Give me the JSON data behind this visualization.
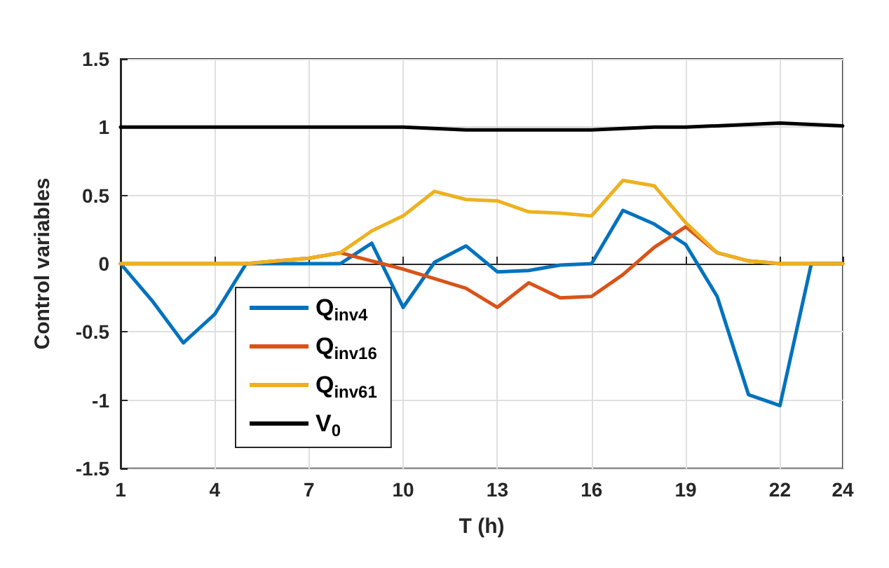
{
  "chart_data": {
    "type": "line",
    "xlabel": "T (h)",
    "ylabel": "Control variables",
    "x": [
      1,
      2,
      3,
      4,
      5,
      6,
      7,
      8,
      9,
      10,
      11,
      12,
      13,
      14,
      15,
      16,
      17,
      18,
      19,
      20,
      21,
      22,
      23,
      24
    ],
    "xlim": [
      1,
      24
    ],
    "xticks": [
      1,
      4,
      7,
      10,
      13,
      16,
      19,
      22,
      24
    ],
    "ylim": [
      -1.5,
      1.5
    ],
    "yticks": [
      -1.5,
      -1,
      -0.5,
      0,
      0.5,
      1,
      1.5
    ],
    "grid": true,
    "legend": "bottom left",
    "line_style": "solid",
    "marker": "none",
    "series": [
      {
        "name": "Q$_{inv4}$",
        "color": "#0072bd",
        "values": [
          0,
          -0.27,
          -0.58,
          -0.37,
          0,
          0,
          0,
          0,
          0.15,
          -0.32,
          0.01,
          0.13,
          -0.06,
          -0.05,
          -0.01,
          0,
          0.39,
          0.29,
          0.14,
          -0.24,
          -0.96,
          -1.04,
          0,
          0
        ]
      },
      {
        "name": "Q$_{inv16}$",
        "color": "#d95319",
        "values": [
          0,
          0,
          0,
          0,
          0,
          0.02,
          0.04,
          0.08,
          0.02,
          -0.04,
          -0.11,
          -0.18,
          -0.32,
          -0.14,
          -0.25,
          -0.24,
          -0.08,
          0.12,
          0.27,
          0.08,
          0.02,
          0,
          0,
          0
        ]
      },
      {
        "name": "Q$_{inv61}$",
        "color": "#edb120",
        "values": [
          0,
          0,
          0,
          0,
          0,
          0.02,
          0.04,
          0.08,
          0.24,
          0.35,
          0.53,
          0.47,
          0.46,
          0.38,
          0.37,
          0.35,
          0.61,
          0.57,
          0.3,
          0.08,
          0.02,
          0,
          0,
          0
        ]
      },
      {
        "name": "V$_{0}$",
        "color": "#000000",
        "values": [
          1,
          1,
          1,
          1,
          1,
          1,
          1,
          1,
          1,
          1,
          0.99,
          0.98,
          0.98,
          0.98,
          0.98,
          0.98,
          0.99,
          1,
          1,
          1.01,
          1.02,
          1.03,
          1.02,
          1.01
        ]
      }
    ]
  }
}
